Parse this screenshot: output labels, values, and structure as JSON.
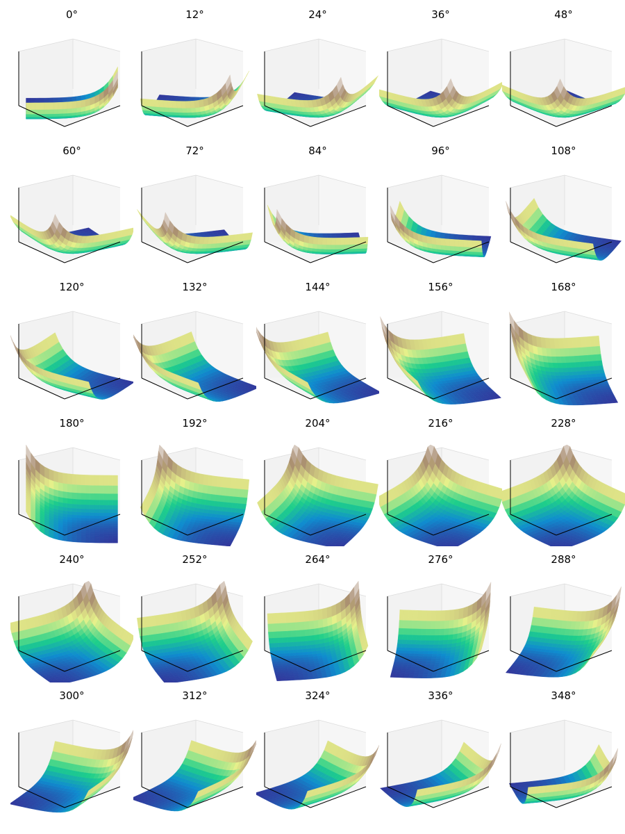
{
  "chart_data": {
    "type": "surface3d",
    "title": "",
    "layout": {
      "rows": 6,
      "cols": 5
    },
    "surface_function": "z = exp(x) + exp(y) style bowl, viewed from different azimuths",
    "elevation_deg": 30,
    "colormap": "terrain",
    "colormap_stops": [
      "#333399",
      "#0f8ccf",
      "#1ecf8a",
      "#e6f08a",
      "#a88c70",
      "#faf8f8"
    ],
    "axis_ticks_visible": false,
    "azimuths": [
      0,
      12,
      24,
      36,
      48,
      60,
      72,
      84,
      96,
      108,
      120,
      132,
      144,
      156,
      168,
      180,
      192,
      204,
      216,
      228,
      240,
      252,
      264,
      276,
      288,
      300,
      312,
      324,
      336,
      348
    ],
    "panel_titles": [
      "0$^\\circ$",
      "12$^\\circ$",
      "24$^\\circ$",
      "36$^\\circ$",
      "48$^\\circ$",
      "60$^\\circ$",
      "72$^\\circ$",
      "84$^\\circ$",
      "96$^\\circ$",
      "108$^\\circ$",
      "120$^\\circ$",
      "132$^\\circ$",
      "144$^\\circ$",
      "156$^\\circ$",
      "168$^\\circ$",
      "180$^\\circ$",
      "192$^\\circ$",
      "204$^\\circ$",
      "216$^\\circ$",
      "228$^\\circ$",
      "240$^\\circ$",
      "252$^\\circ$",
      "264$^\\circ$",
      "276$^\\circ$",
      "288$^\\circ$",
      "300$^\\circ$",
      "312$^\\circ$",
      "324$^\\circ$",
      "336$^\\circ$",
      "348$^\\circ$"
    ],
    "panel_labels": [
      "0°",
      "12°",
      "24°",
      "36°",
      "48°",
      "60°",
      "72°",
      "84°",
      "96°",
      "108°",
      "120°",
      "132°",
      "144°",
      "156°",
      "168°",
      "180°",
      "192°",
      "204°",
      "216°",
      "228°",
      "240°",
      "252°",
      "264°",
      "276°",
      "288°",
      "300°",
      "312°",
      "324°",
      "336°",
      "348°"
    ]
  }
}
